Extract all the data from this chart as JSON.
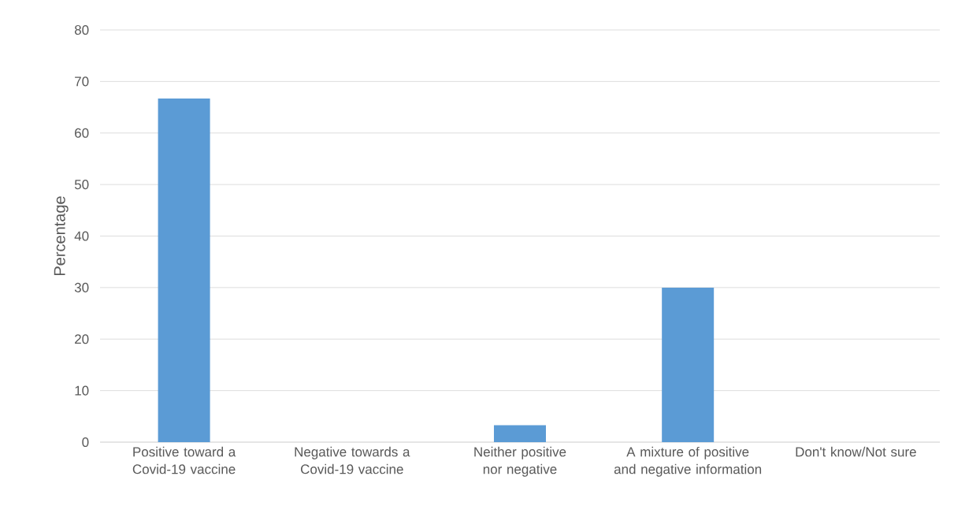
{
  "chart_data": {
    "type": "bar",
    "ylabel": "Percentage",
    "categories": [
      "Positive toward a Covid-19 vaccine",
      "Negative towards a Covid-19 vaccine",
      "Neither positive nor negative",
      "A mixture of positive and negative information",
      "Don't know/Not sure"
    ],
    "values": [
      66.7,
      0,
      3.3,
      30,
      0
    ],
    "color": "#5b9bd5",
    "ylim": [
      0,
      80
    ],
    "yticks": [
      0,
      10,
      20,
      30,
      40,
      50,
      60,
      70,
      80
    ],
    "grid": "y"
  }
}
